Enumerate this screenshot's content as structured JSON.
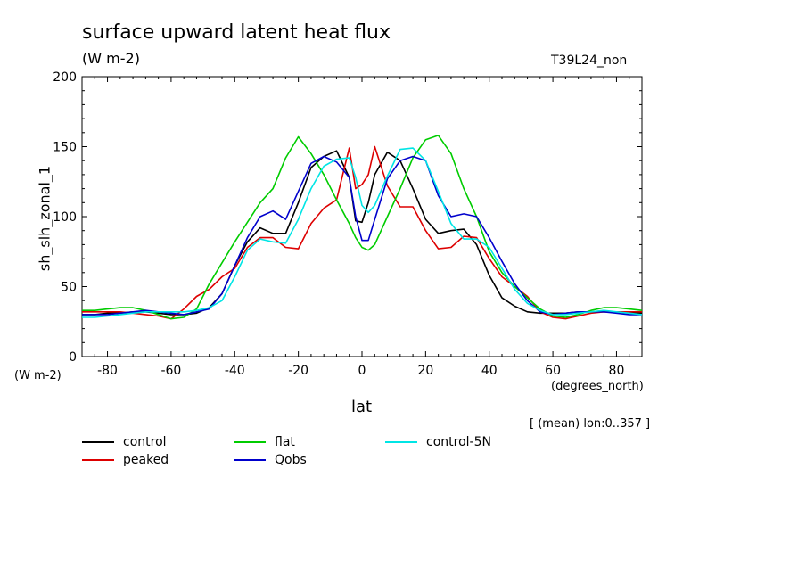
{
  "header": {
    "title": "surface upward latent heat flux",
    "units": "(W m-2)",
    "experiment": "T39L24_non"
  },
  "axes": {
    "ylabel": "sh_slh_zonal_1",
    "yunit": "(W m-2)",
    "xlabel": "lat",
    "xunit": "(degrees_north)",
    "mean_note": "[ (mean) lon:0..357 ]"
  },
  "chart_data": {
    "type": "line",
    "title": "surface upward latent heat flux",
    "xlabel": "lat",
    "ylabel": "sh_slh_zonal_1",
    "xlim": [
      -88,
      88
    ],
    "ylim": [
      0,
      200
    ],
    "xticks": [
      -80,
      -60,
      -40,
      -20,
      0,
      20,
      40,
      60,
      80
    ],
    "yticks": [
      0,
      50,
      100,
      150,
      200
    ],
    "grid": false,
    "legend": "bottom",
    "x": [
      -88,
      -84,
      -80,
      -76,
      -72,
      -68,
      -64,
      -60,
      -56,
      -52,
      -48,
      -44,
      -40,
      -36,
      -32,
      -28,
      -24,
      -20,
      -16,
      -12,
      -8,
      -4,
      -2,
      0,
      2,
      4,
      8,
      12,
      16,
      20,
      24,
      28,
      32,
      36,
      40,
      44,
      48,
      52,
      56,
      60,
      64,
      68,
      72,
      76,
      80,
      84,
      88
    ],
    "series": [
      {
        "name": "control",
        "color": "#000000",
        "values": [
          30,
          30,
          31,
          31,
          32,
          32,
          31,
          30,
          30,
          31,
          35,
          45,
          65,
          82,
          92,
          88,
          88,
          110,
          135,
          143,
          147,
          128,
          97,
          96,
          110,
          130,
          146,
          140,
          120,
          98,
          88,
          90,
          91,
          80,
          58,
          42,
          36,
          32,
          31,
          31,
          31,
          32,
          32,
          32,
          32,
          31,
          31
        ]
      },
      {
        "name": "peaked",
        "color": "#dd0000",
        "values": [
          32,
          32,
          32,
          32,
          31,
          30,
          29,
          27,
          34,
          43,
          48,
          57,
          63,
          78,
          85,
          85,
          78,
          77,
          95,
          106,
          112,
          149,
          120,
          123,
          130,
          150,
          122,
          107,
          107,
          90,
          77,
          78,
          86,
          85,
          70,
          57,
          50,
          43,
          32,
          28,
          27,
          29,
          31,
          32,
          32,
          32,
          32
        ]
      },
      {
        "name": "flat",
        "color": "#00cc00",
        "values": [
          33,
          33,
          34,
          35,
          35,
          33,
          30,
          27,
          28,
          34,
          52,
          67,
          82,
          96,
          110,
          120,
          142,
          157,
          145,
          130,
          112,
          95,
          85,
          78,
          76,
          80,
          100,
          120,
          142,
          155,
          158,
          145,
          120,
          100,
          75,
          60,
          50,
          42,
          34,
          29,
          28,
          30,
          33,
          35,
          35,
          34,
          33
        ]
      },
      {
        "name": "Qobs",
        "color": "#0000cc",
        "values": [
          30,
          30,
          30,
          31,
          32,
          33,
          32,
          31,
          30,
          32,
          34,
          45,
          65,
          85,
          100,
          104,
          98,
          118,
          138,
          143,
          139,
          128,
          100,
          83,
          83,
          98,
          127,
          140,
          143,
          140,
          115,
          100,
          102,
          100,
          85,
          68,
          52,
          40,
          32,
          30,
          31,
          32,
          32,
          32,
          31,
          30,
          30
        ]
      },
      {
        "name": "control-5N",
        "color": "#00e5e5",
        "values": [
          28,
          28,
          29,
          30,
          31,
          32,
          32,
          32,
          32,
          33,
          35,
          40,
          57,
          76,
          84,
          82,
          81,
          98,
          120,
          136,
          141,
          142,
          128,
          108,
          103,
          108,
          129,
          148,
          149,
          140,
          118,
          95,
          84,
          84,
          78,
          63,
          48,
          38,
          33,
          30,
          30,
          31,
          32,
          33,
          32,
          31,
          30
        ]
      }
    ]
  }
}
